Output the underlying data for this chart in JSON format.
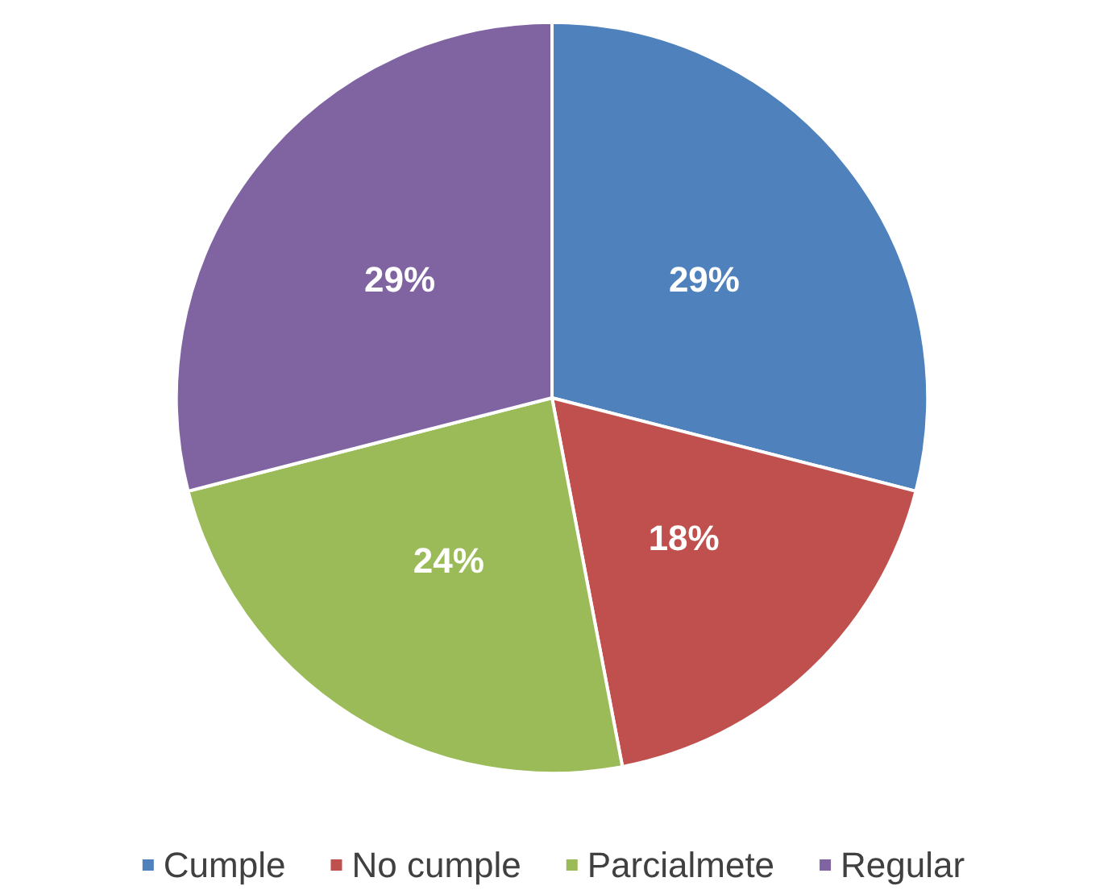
{
  "chart_data": {
    "type": "pie",
    "categories": [
      "Cumple",
      "No cumple",
      "Parcialmete",
      "Regular"
    ],
    "values": [
      29,
      18,
      24,
      29
    ],
    "colors": [
      "#4f81bd",
      "#c0504d",
      "#9bbb59",
      "#8064a2"
    ],
    "value_labels": [
      "29%",
      "18%",
      "24%",
      "29%"
    ],
    "legend": "bottom"
  }
}
